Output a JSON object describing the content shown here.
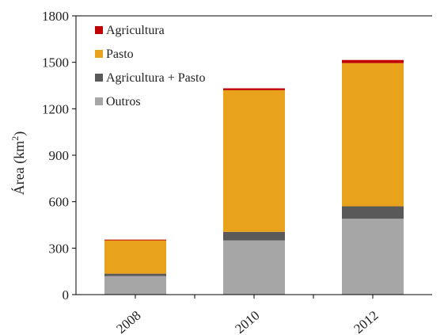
{
  "chart_data": {
    "type": "bar",
    "stacked": true,
    "categories": [
      "2008",
      "2010",
      "2012"
    ],
    "ylabel_main": "Área (km",
    "ylabel_sup": "2",
    "ylabel_close": ")",
    "ylim": [
      0,
      1800
    ],
    "yticks": [
      "0",
      "300",
      "600",
      "900",
      "1200",
      "1500",
      "1800"
    ],
    "grid": false,
    "legend_position": "top-left",
    "series": [
      {
        "name": "Outros",
        "color": "#a6a6a6",
        "values": [
          120,
          350,
          490
        ]
      },
      {
        "name": "Agricultura + Pasto",
        "color": "#595959",
        "values": [
          15,
          55,
          80
        ]
      },
      {
        "name": "Pasto",
        "color": "#e8a21c",
        "values": [
          215,
          915,
          925
        ]
      },
      {
        "name": "Agricultura",
        "color": "#c00000",
        "values": [
          5,
          12,
          20
        ]
      }
    ],
    "legend_order": [
      "Agricultura",
      "Pasto",
      "Agricultura + Pasto",
      "Outros"
    ]
  }
}
